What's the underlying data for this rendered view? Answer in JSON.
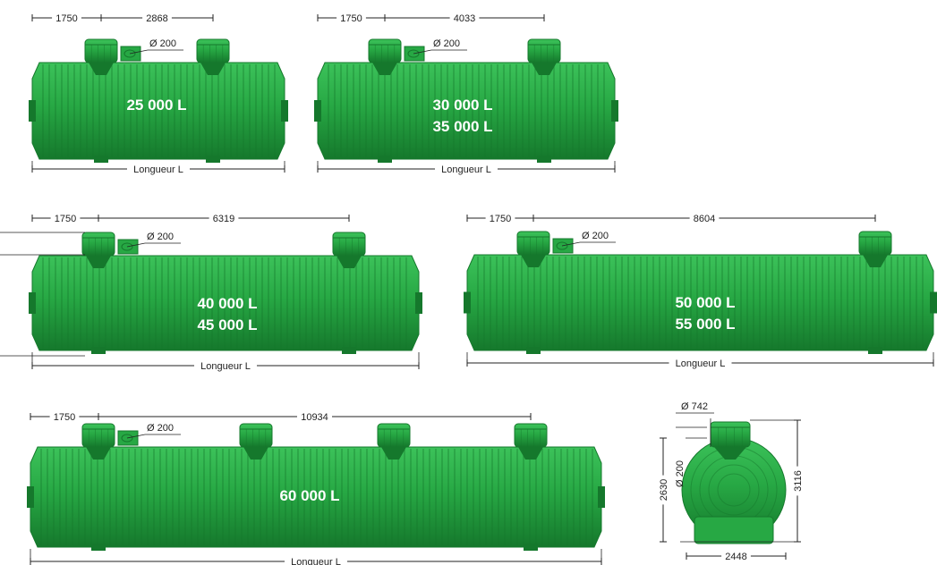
{
  "colors": {
    "tank_body": "#27a844",
    "tank_light": "#3cc25a",
    "tank_dark": "#15782c",
    "dimension_line": "#222222",
    "capacity_text": "#ffffff"
  },
  "common": {
    "access_offset": "1750",
    "pipe_label": "Ø 200",
    "length_label": "Longueur L"
  },
  "tanks": [
    {
      "id": "tank-25000",
      "capacities": [
        "25 000 L"
      ],
      "spacing": "2868"
    },
    {
      "id": "tank-30000",
      "capacities": [
        "30 000 L",
        "35 000 L"
      ],
      "spacing": "4033"
    },
    {
      "id": "tank-40000",
      "capacities": [
        "40 000 L",
        "45 000 L"
      ],
      "spacing": "6319"
    },
    {
      "id": "tank-50000",
      "capacities": [
        "50 000 L",
        "55 000 L"
      ],
      "spacing": "8604"
    },
    {
      "id": "tank-60000",
      "capacities": [
        "60 000 L"
      ],
      "spacing": "10934"
    }
  ],
  "end_view": {
    "manhole_diameter": "Ø 742",
    "pipe_label": "Ø 200",
    "inlet_height": "2630",
    "total_height": "3116",
    "body_width": "2448"
  }
}
